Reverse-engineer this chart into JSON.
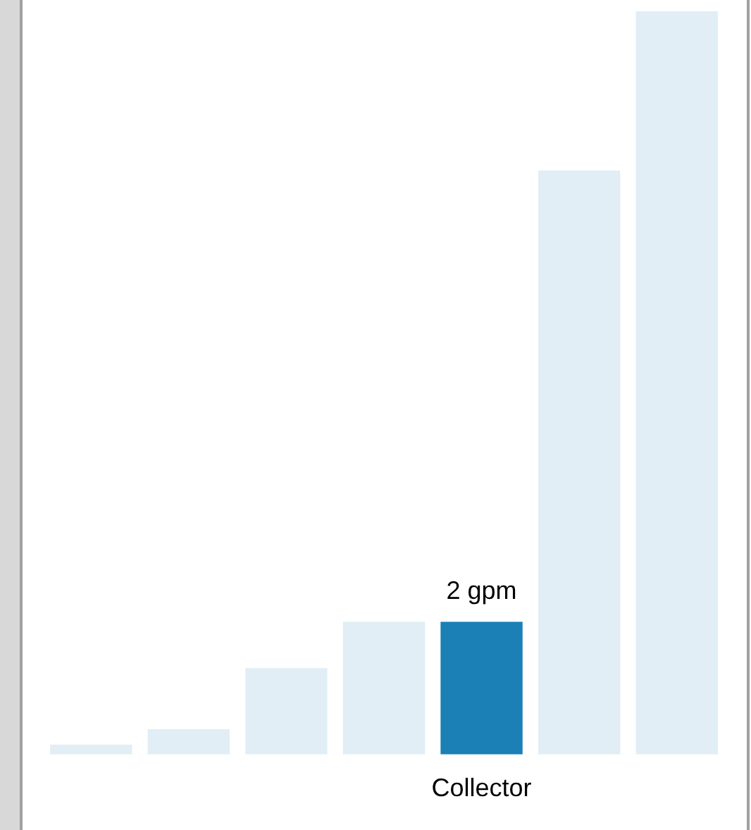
{
  "chart_data": {
    "type": "bar",
    "categories": [
      null,
      null,
      null,
      null,
      "Collector",
      null,
      null
    ],
    "values": [
      0.15,
      0.38,
      1.3,
      2,
      2,
      8.8,
      11.2
    ],
    "colors": [
      "#e1eef5",
      "#e1eef5",
      "#e1eef5",
      "#e1eef5",
      "#1a80b6",
      "#e1eef5",
      "#e1eef5"
    ],
    "value_labels": [
      null,
      null,
      null,
      null,
      "2 gpm",
      null,
      null
    ],
    "ylim": [
      0,
      11.2
    ],
    "grid": false,
    "legend": false
  }
}
